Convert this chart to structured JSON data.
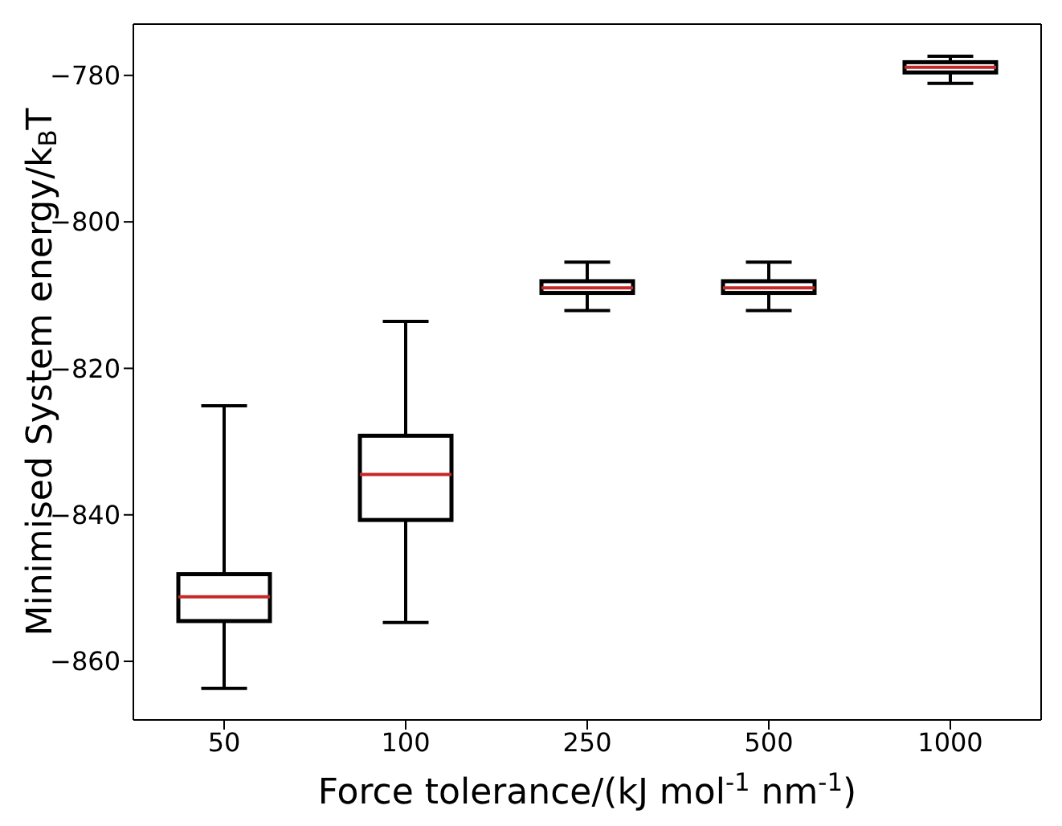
{
  "chart_data": {
    "type": "box",
    "xlabel": "Force tolerance/(kJ mol$^{-1}$ nm$^{-1}$)",
    "ylabel": "Minimised System energy/k$_{B}$T",
    "categories": [
      "50",
      "100",
      "250",
      "500",
      "1000"
    ],
    "series": [
      {
        "color": "#000000",
        "boxes": [
          {
            "low": -863.7,
            "q1": -854.5,
            "median": -851.2,
            "q3": -848.1,
            "high": -825.1
          },
          {
            "low": -854.7,
            "q1": -840.7,
            "median": -834.5,
            "q3": -829.2,
            "high": -813.6
          },
          {
            "low": -812.1,
            "q1": -809.7,
            "median": -809.0,
            "q3": -808.1,
            "high": -805.5
          },
          {
            "low": -812.1,
            "q1": -809.7,
            "median": -809.0,
            "q3": -808.1,
            "high": -805.5
          },
          {
            "low": -781.1,
            "q1": -779.6,
            "median": -778.9,
            "q3": -778.2,
            "high": -777.4
          }
        ]
      }
    ],
    "ylim": [
      -868,
      -773
    ],
    "yticks": [
      -860,
      -840,
      -820,
      -800,
      -780
    ]
  }
}
